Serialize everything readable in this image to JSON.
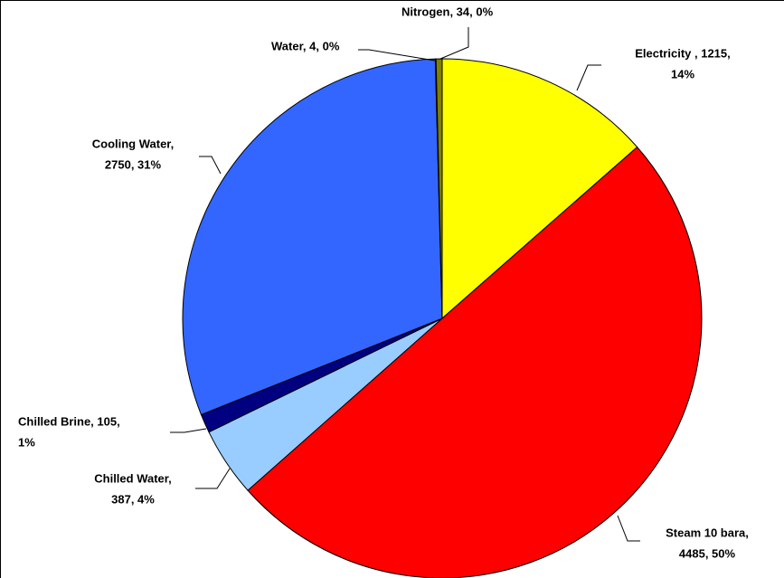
{
  "chart_data": {
    "type": "pie",
    "values": [
      1215,
      4485,
      387,
      105,
      2750,
      4,
      34
    ],
    "value_labels": [
      [
        "Electricity , 1215,",
        "14%"
      ],
      [
        "Steam 10 bara,",
        "4485, 50%"
      ],
      [
        "Chilled Water,",
        "387, 4%"
      ],
      [
        "Chilled Brine, 105,",
        "1%"
      ],
      [
        "Cooling Water,",
        "2750, 31%"
      ],
      [
        "Water, 4, 0%"
      ],
      [
        "Nitrogen, 34, 0%"
      ]
    ],
    "colors": [
      "#ffff00",
      "#ff0000",
      "#99ccff",
      "#000080",
      "#3366ff",
      "#00cccc",
      "#808000"
    ]
  }
}
